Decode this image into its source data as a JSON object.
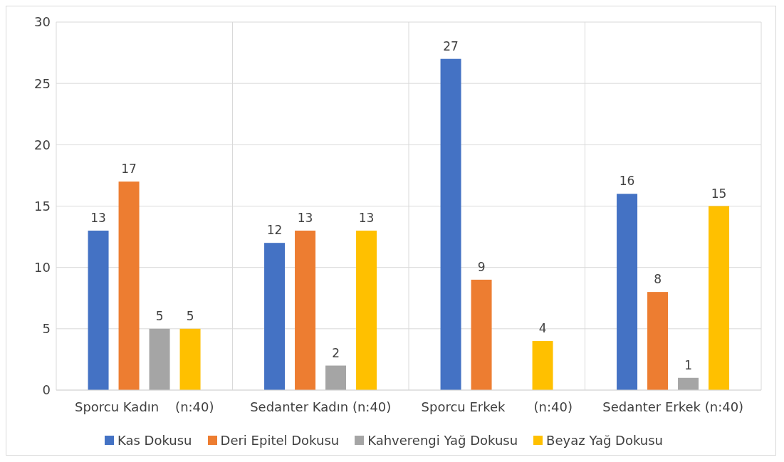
{
  "chart_data": {
    "type": "bar",
    "categories": [
      "Sporcu Kadın    (n:40)",
      "Sedanter Kadın (n:40)",
      "Sporcu Erkek       (n:40)",
      "Sedanter Erkek (n:40)"
    ],
    "series": [
      {
        "name": "Kas Dokusu",
        "color": "#4472c4",
        "values": [
          13,
          12,
          27,
          16
        ]
      },
      {
        "name": "Deri Epitel Dokusu",
        "color": "#ed7d31",
        "values": [
          17,
          13,
          9,
          8
        ]
      },
      {
        "name": "Kahverengi Yağ Dokusu",
        "color": "#a5a5a5",
        "values": [
          5,
          2,
          0,
          1
        ],
        "value_labels": [
          "5",
          "2",
          null,
          "1"
        ]
      },
      {
        "name": "Beyaz Yağ Dokusu",
        "color": "#ffc000",
        "values": [
          5,
          13,
          4,
          15
        ]
      }
    ],
    "ylim": [
      0,
      30
    ],
    "yticks": [
      0,
      5,
      10,
      15,
      20,
      25,
      30
    ],
    "grid": true,
    "legend": "bottom",
    "data_labels": true
  }
}
